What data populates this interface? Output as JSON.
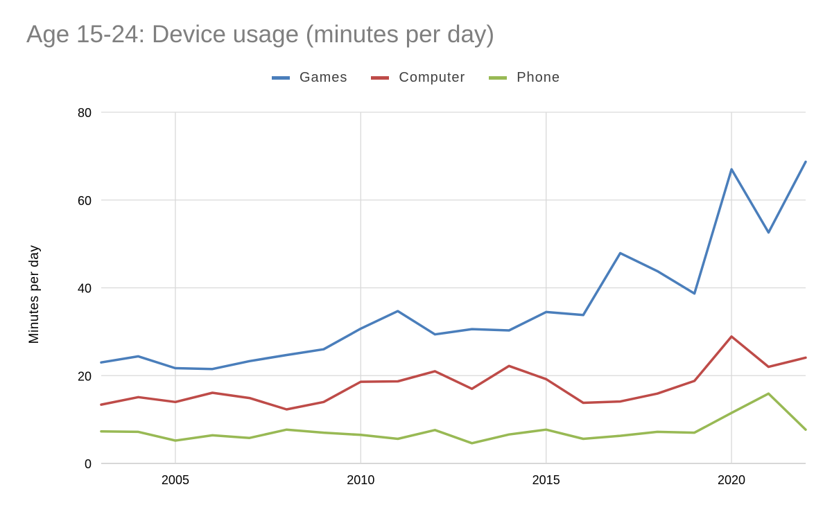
{
  "chart_data": {
    "type": "line",
    "title": "Age 15-24: Device usage (minutes per day)",
    "xlabel": "",
    "ylabel": "Minutes per day",
    "x": [
      2003,
      2004,
      2005,
      2006,
      2007,
      2008,
      2009,
      2010,
      2011,
      2012,
      2013,
      2014,
      2015,
      2016,
      2017,
      2018,
      2019,
      2020,
      2021,
      2022
    ],
    "xlim": [
      2003,
      2022
    ],
    "ylim": [
      0,
      80
    ],
    "xticks": [
      "2005",
      "2010",
      "2015",
      "2020"
    ],
    "yticks": [
      "0",
      "20",
      "40",
      "60",
      "80"
    ],
    "grid": true,
    "legend_position": "top",
    "series": [
      {
        "name": "Games",
        "color": "#4a7ebb",
        "values": [
          23.0,
          24.4,
          21.7,
          21.5,
          23.3,
          24.7,
          26.0,
          30.7,
          34.7,
          29.4,
          30.6,
          30.3,
          34.5,
          33.8,
          47.9,
          43.8,
          38.7,
          67.0,
          52.6,
          68.7
        ]
      },
      {
        "name": "Computer",
        "color": "#be4b48",
        "values": [
          13.4,
          15.1,
          14.0,
          16.1,
          14.9,
          12.3,
          14.0,
          18.6,
          18.7,
          21.0,
          17.0,
          22.2,
          19.2,
          13.8,
          14.1,
          15.9,
          18.8,
          28.9,
          22.0,
          24.1
        ]
      },
      {
        "name": "Phone",
        "color": "#98b954",
        "values": [
          7.3,
          7.2,
          5.2,
          6.4,
          5.8,
          7.7,
          7.0,
          6.5,
          5.6,
          7.6,
          4.6,
          6.6,
          7.7,
          5.6,
          6.3,
          7.2,
          7.0,
          11.5,
          15.9,
          7.7
        ]
      }
    ]
  }
}
